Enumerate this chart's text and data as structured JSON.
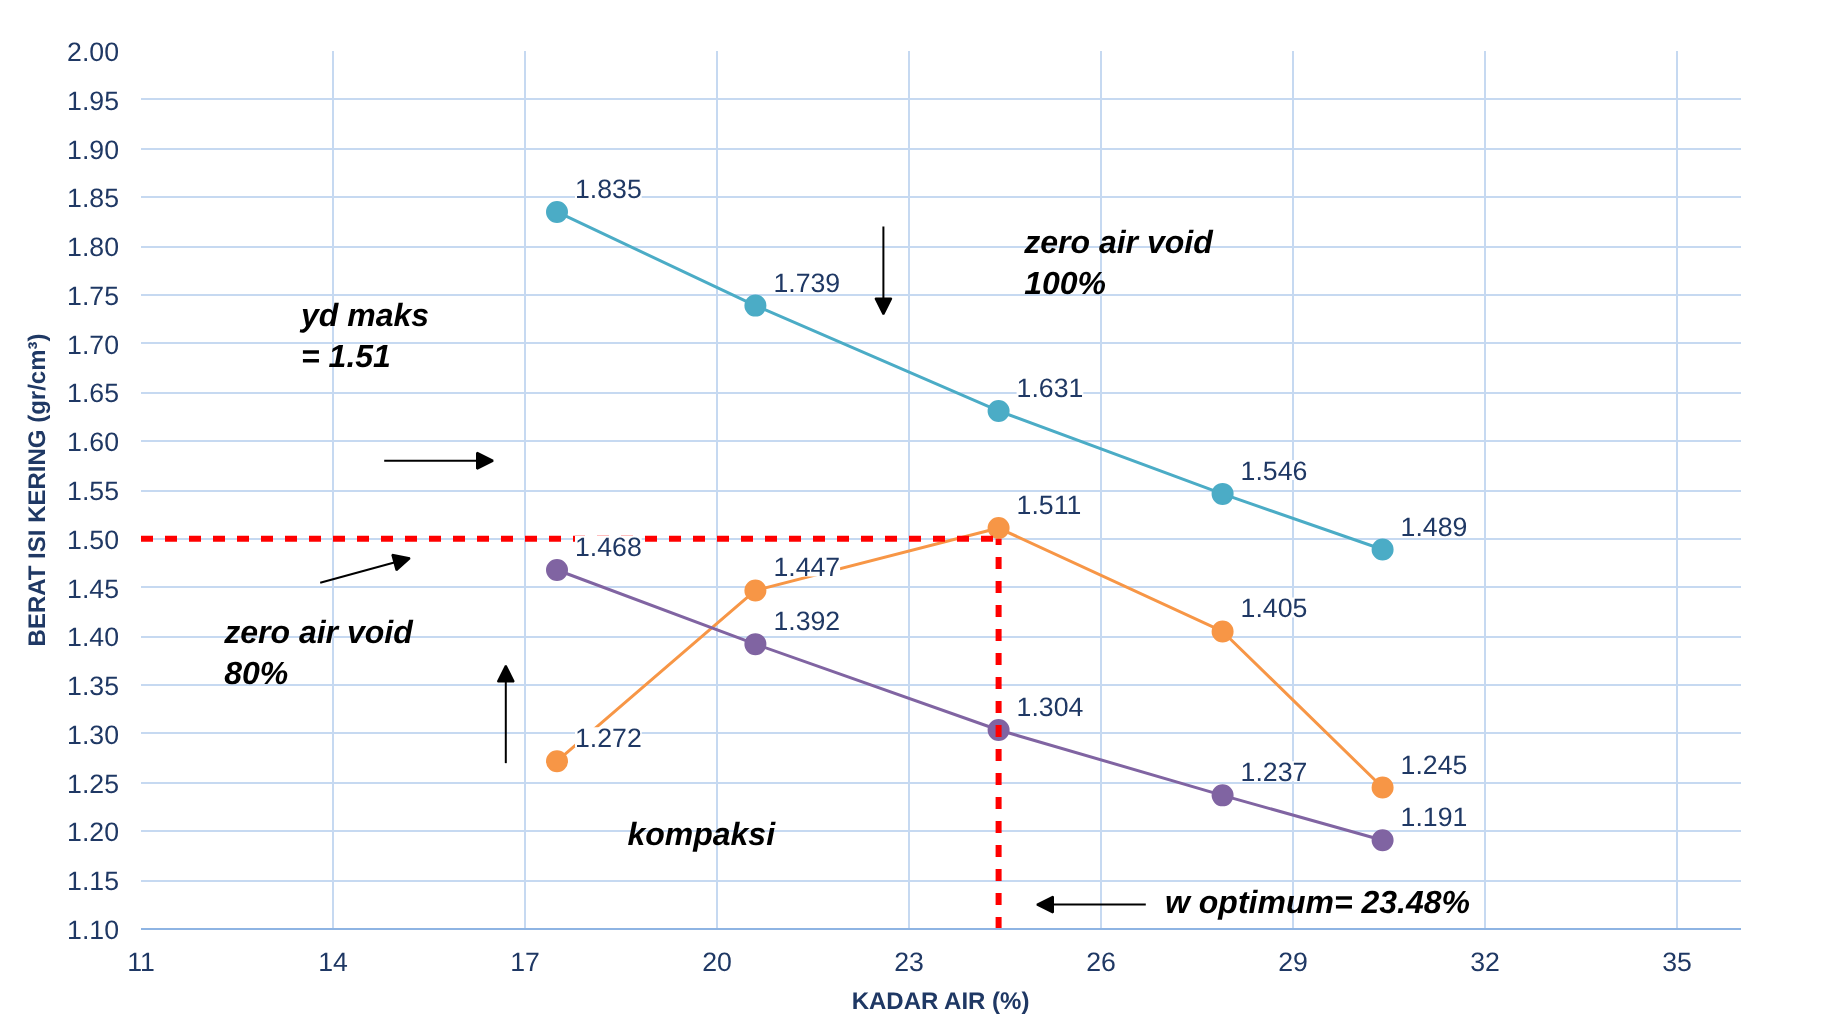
{
  "chart_data": {
    "type": "line",
    "xlabel": "KADAR AIR (%)",
    "ylabel": "BERAT ISI KERING (gr/cm³)",
    "x": [
      17.5,
      20.6,
      24.4,
      27.9,
      30.4
    ],
    "series": [
      {
        "color": "#4bacc6",
        "values": [
          1.835,
          1.739,
          1.631,
          1.546,
          1.489
        ]
      },
      {
        "color": "#f79646",
        "values": [
          1.272,
          1.447,
          1.511,
          1.405,
          1.245
        ]
      },
      {
        "color": "#8064a2",
        "values": [
          1.468,
          1.392,
          1.304,
          1.237,
          1.191
        ]
      }
    ],
    "data_labels": true,
    "marker": "circle",
    "line_style": "solid",
    "grid": true,
    "xlim": [
      11,
      36
    ],
    "xticks": [
      11,
      14,
      17,
      20,
      23,
      26,
      29,
      32,
      35
    ],
    "ylim": [
      1.1,
      2.0
    ],
    "yticks": [
      {
        "value": 1.1,
        "label": "1.10"
      },
      {
        "value": 1.15,
        "label": "1.15"
      },
      {
        "value": 1.2,
        "label": "1.20"
      },
      {
        "value": 1.25,
        "label": "1.25"
      },
      {
        "value": 1.3,
        "label": "1.30"
      },
      {
        "value": 1.35,
        "label": "1.35"
      },
      {
        "value": 1.4,
        "label": "1.40"
      },
      {
        "value": 1.45,
        "label": "1.45"
      },
      {
        "value": 1.5,
        "label": "1.50"
      },
      {
        "value": 1.55,
        "label": "1.55"
      },
      {
        "value": 1.6,
        "label": "1.60"
      },
      {
        "value": 1.65,
        "label": "1.65"
      },
      {
        "value": 1.7,
        "label": "1.70"
      },
      {
        "value": 1.75,
        "label": "1.75"
      },
      {
        "value": 1.8,
        "label": "1.80"
      },
      {
        "value": 1.85,
        "label": "1.85"
      },
      {
        "value": 1.9,
        "label": "1.90"
      },
      {
        "value": 1.95,
        "label": "1.95"
      },
      {
        "value": 2.0,
        "label": "2.00"
      }
    ],
    "ref_lines": [
      {
        "axis": "y",
        "value": 1.5,
        "color": "#ff0000",
        "line_style": "dashed"
      },
      {
        "axis": "x",
        "value": 24.4,
        "color": "#ff0000",
        "line_style": "dashed"
      }
    ],
    "annotations": [
      "yd maks\n= 1.51",
      "zero air void\n100%",
      "zero air void\n80%",
      "kompaksi",
      "w optimum= 23.48%"
    ]
  }
}
